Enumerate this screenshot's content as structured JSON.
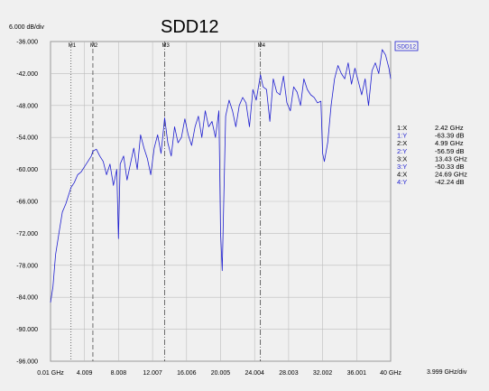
{
  "title": "SDD12",
  "y_scale_label": "6.000 dB/div",
  "x_scale_label": "3.999 GHz/div",
  "legend_label": "SDD12",
  "colors": {
    "trace": "#1f1fd0",
    "grid": "#bdbdbd",
    "background": "#f0f0f0"
  },
  "readouts": [
    {
      "label": "1:X",
      "value": "2.42 GHz",
      "color": "#000000"
    },
    {
      "label": "1:Y",
      "value": "-63.39 dB",
      "color": "#1f1fd0"
    },
    {
      "label": "2:X",
      "value": "4.99 GHz",
      "color": "#000000"
    },
    {
      "label": "2:Y",
      "value": "-56.59 dB",
      "color": "#1f1fd0"
    },
    {
      "label": "3:X",
      "value": "13.43 GHz",
      "color": "#000000"
    },
    {
      "label": "3:Y",
      "value": "-50.33 dB",
      "color": "#1f1fd0"
    },
    {
      "label": "4:X",
      "value": "24.69 GHz",
      "color": "#000000"
    },
    {
      "label": "4:Y",
      "value": "-42.24 dB",
      "color": "#1f1fd0"
    }
  ],
  "chart_data": {
    "type": "line",
    "title": "SDD12",
    "xlabel": "",
    "ylabel": "",
    "xlim": [
      0.01,
      40
    ],
    "ylim": [
      -96,
      -36
    ],
    "x_ticks": [
      0.01,
      4.009,
      8.008,
      12.007,
      16.006,
      20.005,
      24.004,
      28.003,
      32.002,
      36.001,
      40
    ],
    "x_tick_labels": [
      "0.01 GHz",
      "4.009",
      "8.008",
      "12.007",
      "16.006",
      "20.005",
      "24.004",
      "28.003",
      "32.002",
      "36.001",
      "40 GHz"
    ],
    "y_ticks": [
      -36,
      -42,
      -48,
      -54,
      -60,
      -66,
      -72,
      -78,
      -84,
      -90,
      -96
    ],
    "y_tick_labels": [
      "-36.000",
      "-42.000",
      "-48.000",
      "-54.000",
      "-60.000",
      "-66.000",
      "-72.000",
      "-78.000",
      "-84.000",
      "-90.000",
      "-96.000"
    ],
    "grid": true,
    "markers": [
      {
        "name": "M1",
        "x": 2.42,
        "y": -63.39,
        "style": "dotted"
      },
      {
        "name": "M2",
        "x": 4.99,
        "y": -56.59,
        "style": "dashed"
      },
      {
        "name": "M3",
        "x": 13.43,
        "y": -50.33,
        "style": "dashdot"
      },
      {
        "name": "M4",
        "x": 24.69,
        "y": -42.24,
        "style": "dashdot"
      }
    ],
    "series": [
      {
        "name": "SDD12",
        "x": [
          0.01,
          0.3,
          0.6,
          1.0,
          1.4,
          1.8,
          2.2,
          2.42,
          2.8,
          3.2,
          3.6,
          4.0,
          4.4,
          4.8,
          4.99,
          5.4,
          5.8,
          6.2,
          6.6,
          7.0,
          7.4,
          7.8,
          8.0,
          8.2,
          8.6,
          9.0,
          9.4,
          9.8,
          10.2,
          10.6,
          11.0,
          11.4,
          11.8,
          12.2,
          12.6,
          13.0,
          13.43,
          13.8,
          14.2,
          14.6,
          15.0,
          15.4,
          15.8,
          16.2,
          16.6,
          17.0,
          17.4,
          17.8,
          18.2,
          18.6,
          19.0,
          19.4,
          19.8,
          20.0,
          20.2,
          20.6,
          21.0,
          21.4,
          21.8,
          22.2,
          22.6,
          23.0,
          23.4,
          23.8,
          24.2,
          24.69,
          25.0,
          25.4,
          25.8,
          26.2,
          26.6,
          27.0,
          27.4,
          27.8,
          28.2,
          28.6,
          29.0,
          29.4,
          29.8,
          30.2,
          30.6,
          31.0,
          31.4,
          31.8,
          32.0,
          32.2,
          32.6,
          33.0,
          33.4,
          33.8,
          34.2,
          34.6,
          35.0,
          35.4,
          35.8,
          36.2,
          36.6,
          37.0,
          37.4,
          37.8,
          38.2,
          38.6,
          39.0,
          39.4,
          39.8,
          40.0
        ],
        "y": [
          -85,
          -82,
          -76,
          -72,
          -68,
          -66.5,
          -64.5,
          -63.39,
          -62.5,
          -61,
          -60.5,
          -59.5,
          -58.5,
          -57.5,
          -56.59,
          -56.2,
          -57.5,
          -58.5,
          -61,
          -59,
          -63,
          -60,
          -73,
          -59,
          -57.5,
          -62,
          -59,
          -56,
          -60,
          -53.5,
          -56,
          -58,
          -61,
          -56,
          -53.5,
          -57,
          -50.33,
          -55,
          -57.5,
          -52,
          -55,
          -54,
          -50.5,
          -53.5,
          -55.5,
          -52,
          -50,
          -54,
          -49,
          -52,
          -51,
          -54,
          -49,
          -72,
          -79,
          -50,
          -47,
          -49,
          -52,
          -48,
          -46.5,
          -47.5,
          -52,
          -45,
          -47,
          -42.24,
          -44.5,
          -45,
          -51,
          -43,
          -45.5,
          -46,
          -42.5,
          -47.5,
          -49,
          -44.5,
          -45.5,
          -48,
          -43,
          -45,
          -46,
          -46.5,
          -47.5,
          -47.2,
          -57,
          -58.5,
          -55,
          -48,
          -43,
          -40.5,
          -42,
          -43,
          -40,
          -44,
          -41,
          -43.5,
          -46,
          -43,
          -48,
          -41.5,
          -40,
          -42,
          -37.5,
          -38.5,
          -41,
          -43
        ]
      }
    ]
  }
}
